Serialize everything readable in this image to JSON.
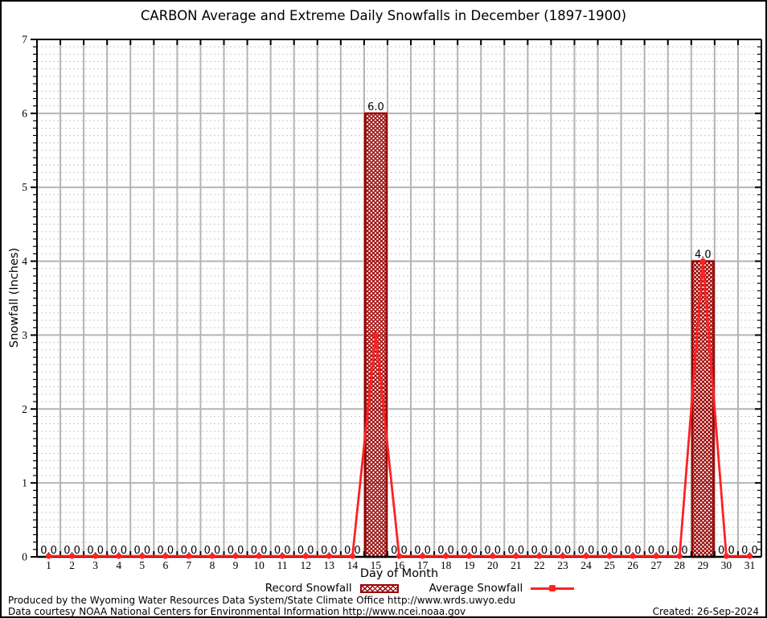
{
  "page": {
    "title": "CARBON Average and Extreme Daily Snowfalls in December (1897-1900)",
    "footer": {
      "line1": "Produced by the Wyoming Water Resources Data System/State Climate Office http://www.wrds.uwyo.edu",
      "line2": "Data courtesy NOAA National Centers for Environmental Information http://www.ncei.noaa.gov",
      "created": "Created: 26-Sep-2024"
    }
  },
  "chart_data": {
    "type": "bar",
    "title": "CARBON Average and Extreme Daily Snowfalls in December (1897-1900)",
    "xlabel": "Day of Month",
    "ylabel": "Snowfall (Inches)",
    "categories": [
      1,
      2,
      3,
      4,
      5,
      6,
      7,
      8,
      9,
      10,
      11,
      12,
      13,
      14,
      15,
      16,
      17,
      18,
      19,
      20,
      21,
      22,
      23,
      24,
      25,
      26,
      27,
      28,
      29,
      30,
      31
    ],
    "series": [
      {
        "name": "Record Snowfall",
        "type": "bar",
        "color": "#990000",
        "values": [
          0,
          0,
          0,
          0,
          0,
          0,
          0,
          0,
          0,
          0,
          0,
          0,
          0,
          0,
          6.0,
          0,
          0,
          0,
          0,
          0,
          0,
          0,
          0,
          0,
          0,
          0,
          0,
          0,
          4.0,
          0,
          0
        ]
      },
      {
        "name": "Average Snowfall",
        "type": "line",
        "color": "#ff2121",
        "values": [
          0,
          0,
          0,
          0,
          0,
          0,
          0,
          0,
          0,
          0,
          0,
          0,
          0,
          0,
          3.0,
          0,
          0,
          0,
          0,
          0,
          0,
          0,
          0,
          0,
          0,
          0,
          0,
          0,
          4.0,
          0,
          0
        ]
      }
    ],
    "value_labels_from": "Record Snowfall",
    "ylim": [
      0,
      7
    ],
    "y_major_step": 1,
    "y_minor_step": 0.1,
    "grid": "major solid, minor dashed",
    "legend_position": "bottom",
    "colors": {
      "bar_border": "#990000",
      "line": "#ff2121",
      "grid_major": "#b4b4b4",
      "grid_minor": "#c9c9c9",
      "axis": "#000000"
    }
  }
}
